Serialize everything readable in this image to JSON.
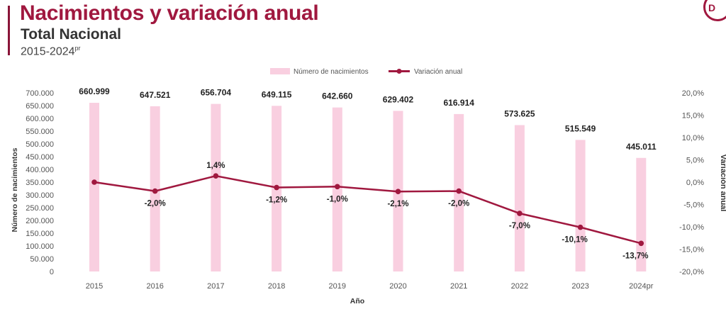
{
  "header": {
    "title": "Nacimientos y variación anual",
    "subtitle": "Total Nacional",
    "period": "2015-2024",
    "period_sup": "pr",
    "logo_text": "D"
  },
  "colors": {
    "title": "#a0183f",
    "bar": "#f9cfe0",
    "line": "#a0183f"
  },
  "chart_data": {
    "type": "bar+line",
    "categories": [
      "2015",
      "2016",
      "2017",
      "2018",
      "2019",
      "2020",
      "2021",
      "2022",
      "2023",
      "2024pr"
    ],
    "series": [
      {
        "name": "Número de nacimientos",
        "type": "bar",
        "axis": "left",
        "values": [
          660999,
          647521,
          656704,
          649115,
          642660,
          629402,
          616914,
          573625,
          515549,
          445011
        ],
        "labels": [
          "660.999",
          "647.521",
          "656.704",
          "649.115",
          "642.660",
          "629.402",
          "616.914",
          "573.625",
          "515.549",
          "445.011"
        ]
      },
      {
        "name": "Variación anual",
        "type": "line",
        "axis": "right",
        "values": [
          0.0,
          -2.0,
          1.4,
          -1.2,
          -1.0,
          -2.1,
          -2.0,
          -7.0,
          -10.1,
          -13.7
        ],
        "labels": [
          "",
          "-2,0%",
          "1,4%",
          "-1,2%",
          "-1,0%",
          "-2,1%",
          "-2,0%",
          "-7,0%",
          "-10,1%",
          "-13,7%"
        ]
      }
    ],
    "xlabel": "Año",
    "ylabel_left": "Número de nacimientos",
    "ylabel_right": "Variación anual",
    "ylim_left": [
      0,
      700000
    ],
    "ylim_right": [
      -20,
      20
    ],
    "yticks_left": [
      "0",
      "50.000",
      "100.000",
      "150.000",
      "200.000",
      "250.000",
      "300.000",
      "350.000",
      "400.000",
      "450.000",
      "500.000",
      "550.000",
      "600.000",
      "650.000",
      "700.000"
    ],
    "yticks_right": [
      "-20,0%",
      "-15,0%",
      "-10,0%",
      "-5,0%",
      "0,0%",
      "5,0%",
      "10,0%",
      "15,0%",
      "20,0%"
    ],
    "grid": false,
    "legend_position": "top-center"
  }
}
